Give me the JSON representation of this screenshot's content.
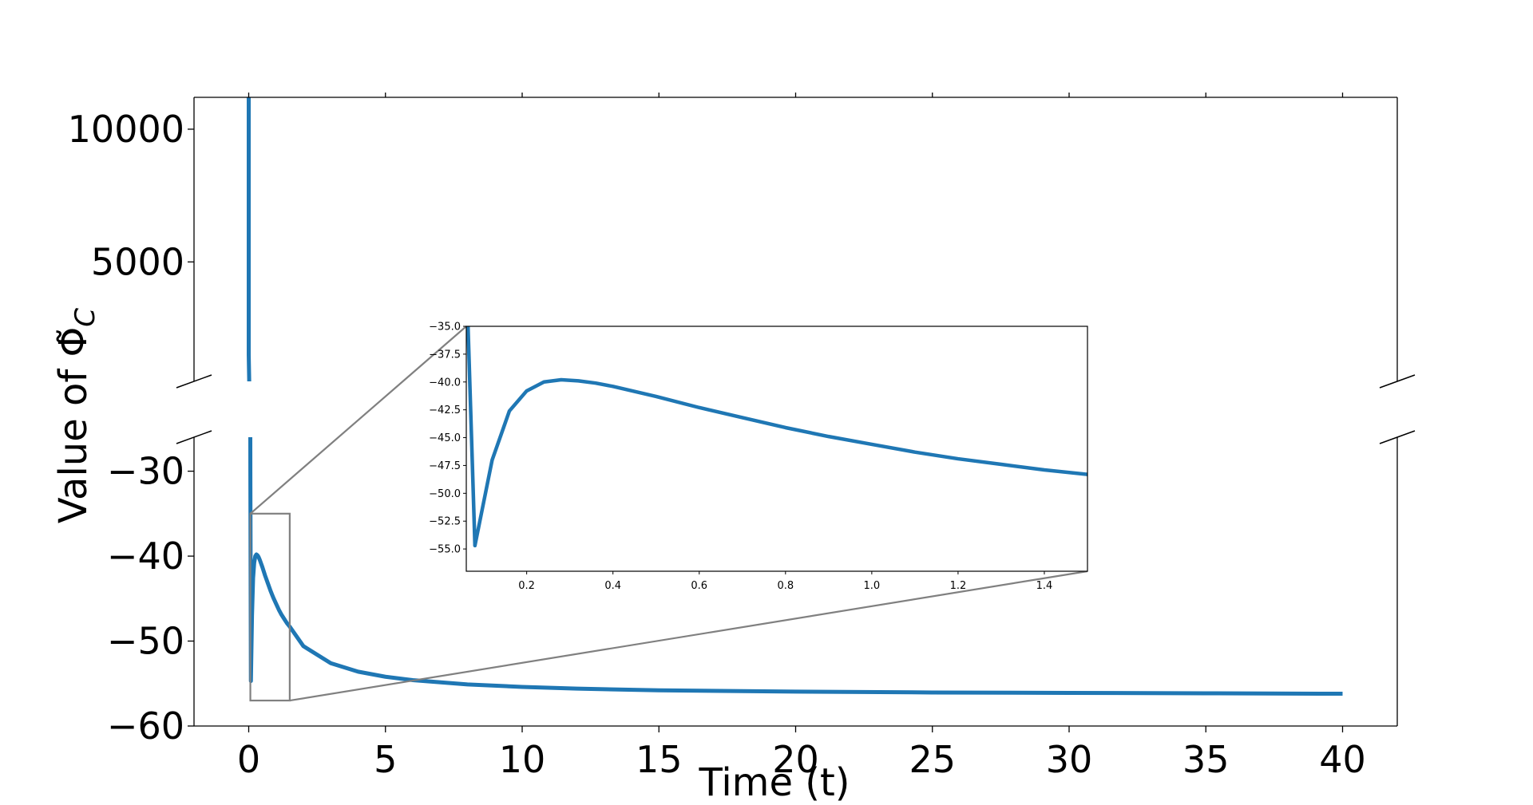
{
  "chart_data": {
    "type": "line",
    "title": "",
    "xlabel": "Time (t)",
    "ylabel": "Value of Φ̃",
    "ylabel_subscript": "C",
    "line_color": "#1f77b4",
    "frame_color": "#000000",
    "zoom_indicator_color": "#808080",
    "y_axis_break": true,
    "grid": false,
    "legend": "none",
    "x_range": [
      -2,
      42
    ],
    "x_ticks": [
      0,
      5,
      10,
      15,
      20,
      25,
      30,
      35,
      40
    ],
    "x_tick_labels": [
      "0",
      "5",
      "10",
      "15",
      "20",
      "25",
      "30",
      "35",
      "40"
    ],
    "upper_panel": {
      "y_range": [
        500,
        11200
      ],
      "y_ticks": [
        5000,
        10000
      ],
      "y_tick_labels": [
        "5000",
        "10000"
      ]
    },
    "lower_panel": {
      "y_range": [
        -60,
        -26
      ],
      "y_ticks": [
        -60,
        -50,
        -40,
        -30
      ],
      "y_tick_labels": [
        "−60",
        "−50",
        "−40",
        "−30"
      ]
    },
    "series": [
      {
        "x": [
          0.0,
          0.0,
          0.02,
          0.04,
          0.06,
          0.08,
          0.12,
          0.16,
          0.2,
          0.24,
          0.28,
          0.32,
          0.36,
          0.4,
          0.5,
          0.6,
          0.7,
          0.8,
          0.9,
          1.0,
          1.1,
          1.2,
          1.3,
          1.4,
          1.5,
          2,
          3,
          4,
          5,
          6,
          8,
          10,
          12,
          15,
          20,
          25,
          30,
          35,
          40
        ],
        "y": [
          11200,
          1500,
          400,
          20,
          -30,
          -54.7,
          -47,
          -42.6,
          -40.8,
          -40,
          -39.8,
          -39.9,
          -40.1,
          -40.4,
          -41.3,
          -42.3,
          -43.2,
          -44.1,
          -44.9,
          -45.6,
          -46.3,
          -46.9,
          -47.4,
          -47.9,
          -48.3,
          -50.6,
          -52.6,
          -53.6,
          -54.2,
          -54.6,
          -55.1,
          -55.4,
          -55.6,
          -55.8,
          -55.95,
          -56.05,
          -56.1,
          -56.15,
          -56.2
        ]
      }
    ],
    "inset": {
      "x_range": [
        0.06,
        1.5
      ],
      "y_range": [
        -57,
        -35
      ],
      "x_ticks": [
        0.2,
        0.4,
        0.6,
        0.8,
        1.0,
        1.2,
        1.4
      ],
      "x_tick_labels": [
        "0.2",
        "0.4",
        "0.6",
        "0.8",
        "1.0",
        "1.2",
        "1.4"
      ],
      "y_ticks": [
        -55,
        -52.5,
        -50,
        -47.5,
        -45,
        -42.5,
        -40,
        -37.5,
        -35
      ],
      "y_tick_labels": [
        "−55.0",
        "−52.5",
        "−50.0",
        "−47.5",
        "−45.0",
        "−42.5",
        "−40.0",
        "−37.5",
        "−35.0"
      ]
    }
  }
}
